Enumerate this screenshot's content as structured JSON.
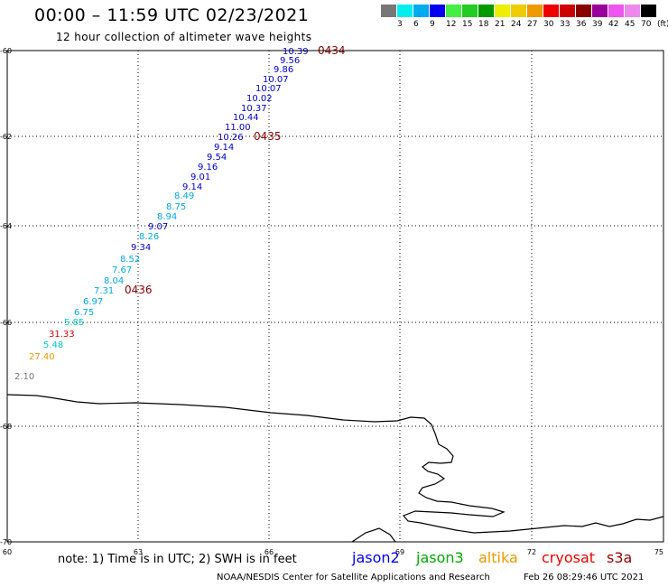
{
  "title": "00:00 – 11:59 UTC 02/23/2021",
  "subtitle": "12 hour collection of altimeter wave heights",
  "legend": {
    "colors": [
      "#777777",
      "#00eeee",
      "#00aaee",
      "#0000ee",
      "#44ee44",
      "#22cc22",
      "#009900",
      "#eeee00",
      "#eecc00",
      "#ee9900",
      "#ee0000",
      "#cc0000",
      "#880000",
      "#990099",
      "#ee55ee",
      "#ee88ee",
      "#000000"
    ],
    "labels": [
      "3",
      "6",
      "9",
      "12",
      "15",
      "18",
      "21",
      "24",
      "27",
      "30",
      "33",
      "36",
      "39",
      "42",
      "45",
      "70",
      "(ft)"
    ]
  },
  "axes": {
    "lat_labels": [
      "-60",
      "-62",
      "-64",
      "-66",
      "-68",
      "-70"
    ],
    "lon_labels": [
      "60",
      "63",
      "66",
      "69",
      "72",
      "75"
    ]
  },
  "times": [
    "0434",
    "0435",
    "0436"
  ],
  "observations": [
    {
      "v": "10.39",
      "c": "#0000cc"
    },
    {
      "v": "9.56",
      "c": "#0000cc"
    },
    {
      "v": "9.86",
      "c": "#0000cc"
    },
    {
      "v": "10.07",
      "c": "#0000cc"
    },
    {
      "v": "10.07",
      "c": "#0000cc"
    },
    {
      "v": "10.02",
      "c": "#0000cc"
    },
    {
      "v": "10.37",
      "c": "#0000cc"
    },
    {
      "v": "10.44",
      "c": "#0000cc"
    },
    {
      "v": "11.00",
      "c": "#0000cc"
    },
    {
      "v": "10.26",
      "c": "#0000cc"
    },
    {
      "v": "9.14",
      "c": "#0000cc"
    },
    {
      "v": "9.54",
      "c": "#0000cc"
    },
    {
      "v": "9.16",
      "c": "#0000cc"
    },
    {
      "v": "9.01",
      "c": "#0000cc"
    },
    {
      "v": "9.14",
      "c": "#0000cc"
    },
    {
      "v": "8.49",
      "c": "#00aadd"
    },
    {
      "v": "8.75",
      "c": "#00aadd"
    },
    {
      "v": "8.94",
      "c": "#00aadd"
    },
    {
      "v": "9.07",
      "c": "#0000cc"
    },
    {
      "v": "8.26",
      "c": "#00aadd"
    },
    {
      "v": "9.34",
      "c": "#0000cc"
    },
    {
      "v": "8.52",
      "c": "#00aadd"
    },
    {
      "v": "7.67",
      "c": "#00aadd"
    },
    {
      "v": "8.04",
      "c": "#00aadd"
    },
    {
      "v": "7.31",
      "c": "#00aadd"
    },
    {
      "v": "6.97",
      "c": "#00aadd"
    },
    {
      "v": "6.75",
      "c": "#00aadd"
    },
    {
      "v": "5.85",
      "c": "#00cccc"
    },
    {
      "v": "31.33",
      "c": "#dd0000"
    },
    {
      "v": "5.48",
      "c": "#00cccc"
    },
    {
      "v": "27.40",
      "c": "#ee9900"
    },
    {
      "v": "2.10",
      "c": "#777777"
    }
  ],
  "note": "note:  1) Time is in UTC;  2) SWH is in feet",
  "satellites": [
    {
      "name": "jason2",
      "color": "#0000ee"
    },
    {
      "name": "jason3",
      "color": "#00aa00"
    },
    {
      "name": "altika",
      "color": "#ee9900"
    },
    {
      "name": "cryosat",
      "color": "#ee0000"
    },
    {
      "name": "s3a",
      "color": "#990000"
    }
  ],
  "credit": "NOAA/NESDIS Center for Satellite Applications and Research",
  "timestamp": "Feb 26 08:29:46 UTC 2021"
}
